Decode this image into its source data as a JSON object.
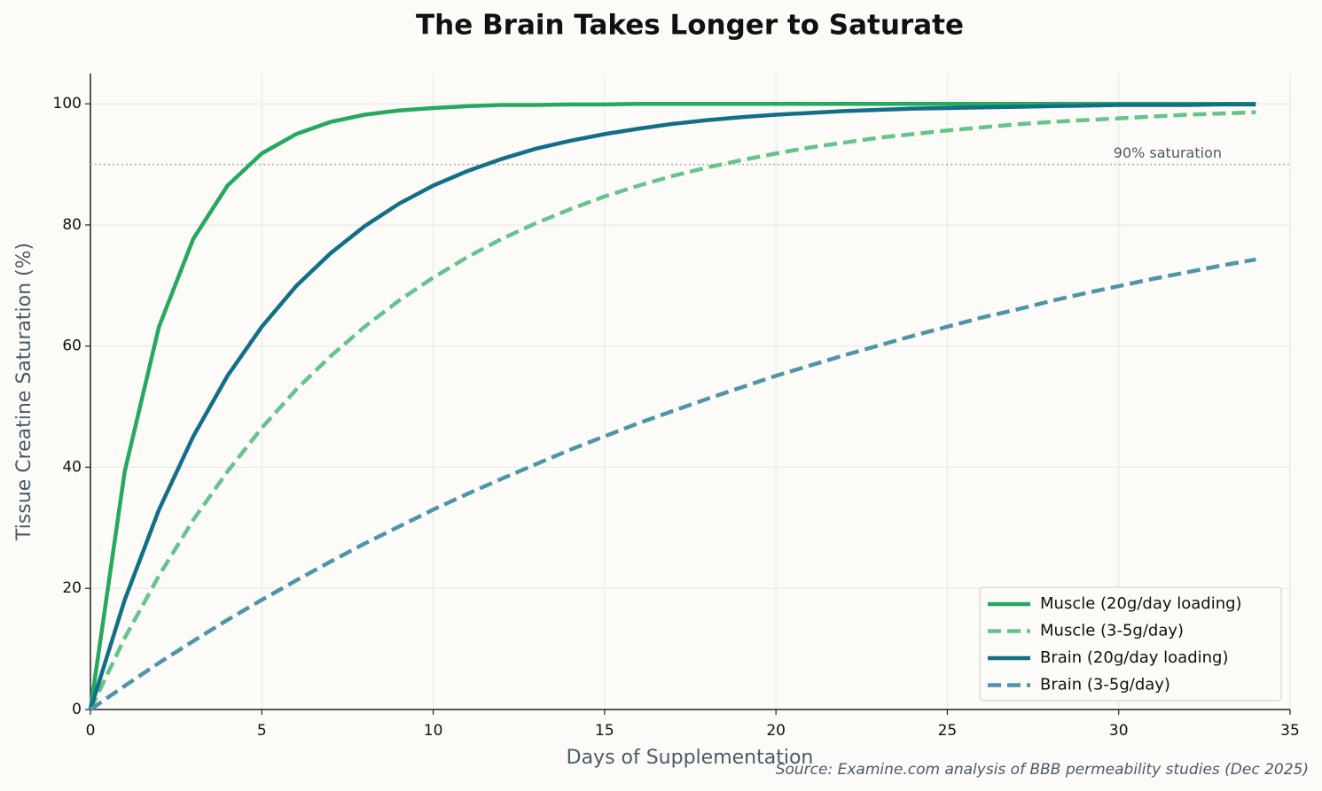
{
  "chart_data": {
    "type": "line",
    "title": "The Brain Takes Longer to Saturate",
    "xlabel": "Days of Supplementation",
    "ylabel": "Tissue Creatine Saturation (%)",
    "source": "Source: Examine.com analysis of BBB permeability studies (Dec 2025)",
    "x": [
      0,
      1,
      2,
      3,
      4,
      5,
      6,
      7,
      8,
      9,
      10,
      11,
      12,
      13,
      14,
      15,
      16,
      17,
      18,
      19,
      20,
      21,
      22,
      23,
      24,
      25,
      26,
      27,
      28,
      29,
      30,
      31,
      32,
      33,
      34
    ],
    "series": [
      {
        "name": "Muscle (20g/day loading)",
        "color": "#27a85f",
        "linestyle": "solid",
        "values": [
          0,
          39.3,
          63.2,
          77.7,
          86.5,
          91.8,
          95.0,
          97.0,
          98.2,
          98.9,
          99.3,
          99.6,
          99.8,
          99.8,
          99.9,
          99.9,
          100,
          100,
          100,
          100,
          100,
          100,
          100,
          100,
          100,
          100,
          100,
          100,
          100,
          100,
          100,
          100,
          100,
          100,
          100
        ]
      },
      {
        "name": "Muscle (3-5g/day)",
        "color": "#66c48a",
        "linestyle": "dashed",
        "values": [
          0,
          11.8,
          22.1,
          31.3,
          39.3,
          46.5,
          52.8,
          58.3,
          63.2,
          67.5,
          71.3,
          74.7,
          77.7,
          80.3,
          82.6,
          84.7,
          86.5,
          88.1,
          89.5,
          90.7,
          91.8,
          92.8,
          93.6,
          94.4,
          95.0,
          95.6,
          96.1,
          96.6,
          97.0,
          97.3,
          97.6,
          97.9,
          98.2,
          98.4,
          98.6
        ]
      },
      {
        "name": "Brain (20g/day loading)",
        "color": "#136f87",
        "linestyle": "solid",
        "values": [
          0,
          18.1,
          33.0,
          45.1,
          55.1,
          63.2,
          69.9,
          75.3,
          79.8,
          83.5,
          86.5,
          88.9,
          90.9,
          92.6,
          93.9,
          95.0,
          95.9,
          96.7,
          97.3,
          97.8,
          98.2,
          98.5,
          98.8,
          99.0,
          99.2,
          99.3,
          99.4,
          99.5,
          99.6,
          99.7,
          99.8,
          99.8,
          99.8,
          99.9,
          99.9
        ]
      },
      {
        "name": "Brain (3-5g/day)",
        "color": "#4f95a8",
        "linestyle": "dashed",
        "values": [
          0,
          3.9,
          7.7,
          11.3,
          14.8,
          18.1,
          21.3,
          24.4,
          27.4,
          30.2,
          33.0,
          35.6,
          38.1,
          40.5,
          42.9,
          45.1,
          47.3,
          49.3,
          51.3,
          53.2,
          55.1,
          56.8,
          58.5,
          60.1,
          61.7,
          63.2,
          64.7,
          66.0,
          67.4,
          68.7,
          69.9,
          71.1,
          72.2,
          73.3,
          74.3
        ]
      }
    ],
    "hline": {
      "value": 90,
      "label": "90% saturation"
    },
    "xlim": [
      0,
      35
    ],
    "xticks": [
      0,
      5,
      10,
      15,
      20,
      25,
      30,
      35
    ],
    "ylim": [
      0,
      105
    ],
    "yticks": [
      0,
      20,
      40,
      60,
      80,
      100
    ],
    "grid": true,
    "legend": "lower right"
  }
}
